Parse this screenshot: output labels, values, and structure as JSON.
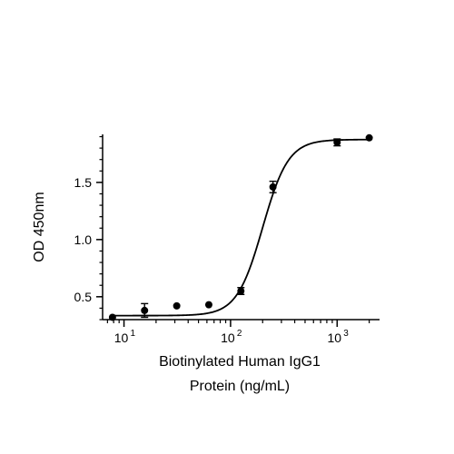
{
  "chart_data": {
    "type": "scatter",
    "title": "",
    "xlabel": [
      "Biotinylated Human IgG1",
      "Protein (ng/mL)"
    ],
    "ylabel": "OD 450nm",
    "x_scale": "log",
    "xlim": [
      6.3,
      2500
    ],
    "ylim": [
      0.3,
      1.92
    ],
    "grid": false,
    "x_ticks": [
      {
        "value": 10,
        "base": "10",
        "exp": "1"
      },
      {
        "value": 100,
        "base": "10",
        "exp": "2"
      },
      {
        "value": 1000,
        "base": "10",
        "exp": "3"
      }
    ],
    "y_ticks": [
      {
        "value": 0.5,
        "label": "0.5"
      },
      {
        "value": 1.0,
        "label": "1.0"
      },
      {
        "value": 1.5,
        "label": "1.5"
      }
    ],
    "series": [
      {
        "points": [
          {
            "x": 7.8,
            "y": 0.32,
            "err": 0
          },
          {
            "x": 15.6,
            "y": 0.38,
            "err": 0.06
          },
          {
            "x": 31.25,
            "y": 0.42,
            "err": 0
          },
          {
            "x": 62.5,
            "y": 0.43,
            "err": 0
          },
          {
            "x": 125,
            "y": 0.55,
            "err": 0.03
          },
          {
            "x": 250,
            "y": 1.46,
            "err": 0.05
          },
          {
            "x": 1000,
            "y": 1.85,
            "err": 0.03
          },
          {
            "x": 2000,
            "y": 1.89,
            "err": 0
          }
        ],
        "fit": {
          "model": "4PL",
          "bottom": 0.335,
          "top": 1.875,
          "ec50": 200,
          "hill": 3.6
        }
      }
    ],
    "colors": {
      "marker": "#000000",
      "line": "#000000"
    }
  }
}
